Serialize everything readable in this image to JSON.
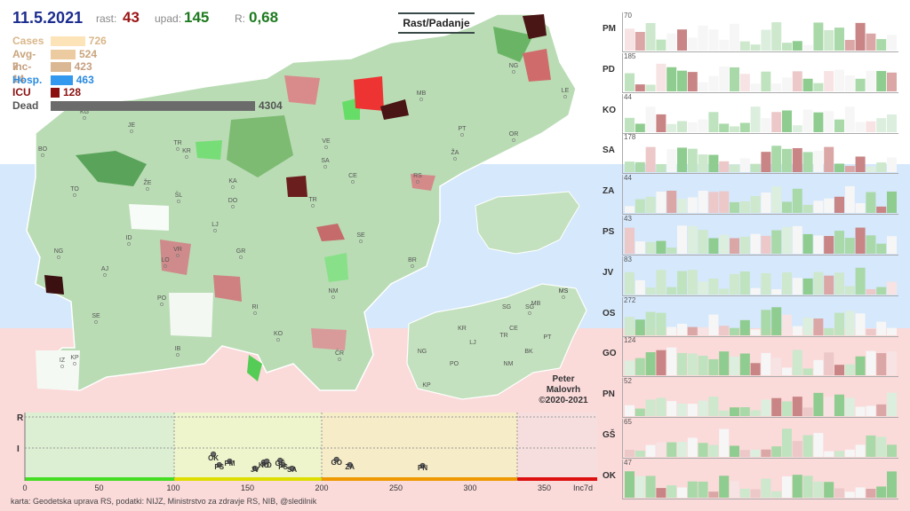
{
  "header": {
    "date": "11.5.2021",
    "rast_label": "rast:",
    "rast_value": "43",
    "upad_label": "upad:",
    "upad_value": "145",
    "r_label": "R:",
    "r_value": "0,68",
    "legend_button": "Rast/Padanje"
  },
  "metrics": [
    {
      "label": "Cases",
      "value": "726",
      "color": "#fde3b8",
      "text_color": "#d9b78a"
    },
    {
      "label": "Avg-7",
      "value": "524",
      "color": "#eccba0",
      "text_color": "#c9a57c"
    },
    {
      "label": "Inc-14",
      "value": "423",
      "color": "#dbb894",
      "text_color": "#c59f80"
    },
    {
      "label": "Hosp.",
      "value": "463",
      "color": "#3399ee",
      "text_color": "#2a8be0"
    },
    {
      "label": "ICU",
      "value": "128",
      "color": "#8b1010",
      "text_color": "#8b1010"
    },
    {
      "label": "Dead",
      "value": "4304",
      "color": "#6b6b6b",
      "text_color": "#555555"
    }
  ],
  "map_labels": [
    "KG",
    "JE",
    "BO",
    "TR",
    "KR",
    "TO",
    "ŠL",
    "KA",
    "DO",
    "LJ",
    "ID",
    "VR",
    "LO",
    "NG",
    "AJ",
    "PO",
    "RI",
    "SE",
    "IB",
    "KO",
    "IZ",
    "KP",
    "GR",
    "NM",
    "ČR",
    "BR",
    "SE",
    "TR",
    "CE",
    "ŽA",
    "RS",
    "MB",
    "PT",
    "OR",
    "NG",
    "LE",
    "MS",
    "SG",
    "SA",
    "VE",
    "ŽE"
  ],
  "inset_labels": [
    "MS",
    "SG",
    "MB",
    "CE",
    "KR",
    "LJ",
    "TR",
    "PT",
    "NG",
    "PO",
    "NM",
    "BK",
    "KP"
  ],
  "credit": [
    "Peter",
    "Malovrh",
    "©2020-2021"
  ],
  "footnote": "karta: Geodetska uprava RS,  podatki: NIJZ, Ministrstvo za zdravje RS, NIB, @sledilnik",
  "scatter": {
    "y_labels": [
      "R",
      "I"
    ],
    "x_ticks": [
      "0",
      "50",
      "100",
      "150",
      "200",
      "250",
      "300",
      "350",
      "Inc7d"
    ],
    "points": [
      {
        "label": "OK",
        "x": 127
      },
      {
        "label": "PS",
        "x": 131
      },
      {
        "label": "PM",
        "x": 138
      },
      {
        "label": "JV",
        "x": 155
      },
      {
        "label": "KO",
        "x": 161
      },
      {
        "label": "PD",
        "x": 163
      },
      {
        "label": "GŠ",
        "x": 172
      },
      {
        "label": "PS",
        "x": 174
      },
      {
        "label": "SA",
        "x": 180
      },
      {
        "label": "GO",
        "x": 210
      },
      {
        "label": "ZA",
        "x": 219
      },
      {
        "label": "PN",
        "x": 268
      }
    ]
  },
  "regions": [
    {
      "code": "PM",
      "max": "70"
    },
    {
      "code": "PD",
      "max": "185"
    },
    {
      "code": "KO",
      "max": "44"
    },
    {
      "code": "SA",
      "max": "178"
    },
    {
      "code": "ZA",
      "max": "44"
    },
    {
      "code": "PS",
      "max": "43"
    },
    {
      "code": "JV",
      "max": "83"
    },
    {
      "code": "OS",
      "max": "272"
    },
    {
      "code": "GO",
      "max": "124"
    },
    {
      "code": "PN",
      "max": "52"
    },
    {
      "code": "GŠ",
      "max": "65"
    },
    {
      "code": "OK",
      "max": "47"
    }
  ]
}
